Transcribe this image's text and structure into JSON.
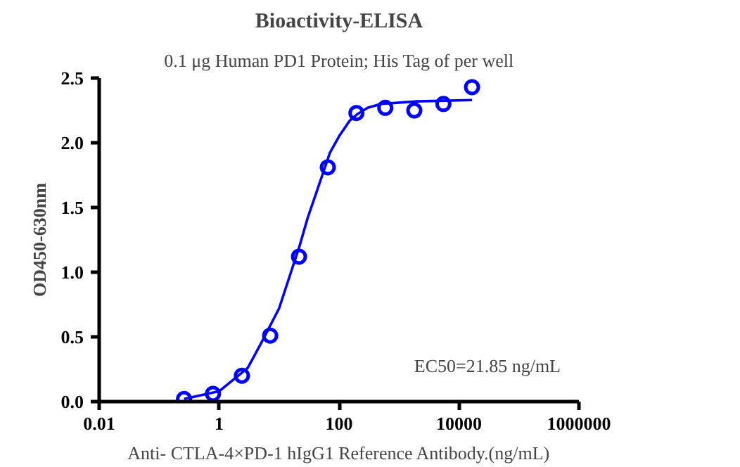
{
  "chart_data": {
    "type": "scatter",
    "title": "Bioactivity-ELISA",
    "subtitle": "0.1 μg Human PD1 Protein; His Tag of per well",
    "xlabel": "Anti- CTLA-4×PD-1 hIgG1 Reference Antibody.(ng/mL)",
    "ylabel": "OD450-630nm",
    "log": "x",
    "xlim": [
      0.01,
      1000000
    ],
    "xticks": [
      0.01,
      1,
      100,
      10000,
      1000000
    ],
    "ylim": [
      0,
      2.5
    ],
    "yticks": [
      {
        "value": 0,
        "label": "0.0"
      },
      0.5,
      {
        "value": 1,
        "label": "1.0"
      },
      1.5,
      {
        "value": 2,
        "label": "2.0"
      },
      2.5
    ],
    "grid": false,
    "marker": "circle",
    "annotations": [
      "EC50=21.85 ng/mL"
    ],
    "series": [
      {
        "color": "#0000ff",
        "x": [
          0.26,
          0.79,
          2.4,
          7.1,
          21.5,
          65,
          195,
          590,
          1800,
          5500,
          16500
        ],
        "values": [
          0.02,
          0.06,
          0.2,
          0.51,
          1.12,
          1.81,
          2.23,
          2.27,
          2.25,
          2.3,
          2.43
        ]
      },
      {
        "type": "line",
        "color": "#0000ff",
        "marker": "none",
        "x": [
          0.26,
          1,
          3,
          5,
          10,
          21.85,
          30,
          50,
          70,
          100,
          150,
          200,
          300,
          500,
          2000,
          16500
        ],
        "values": [
          0.02,
          0.08,
          0.26,
          0.45,
          0.72,
          1.2,
          1.42,
          1.72,
          1.92,
          2.05,
          2.17,
          2.22,
          2.27,
          2.3,
          2.32,
          2.33
        ]
      }
    ]
  }
}
